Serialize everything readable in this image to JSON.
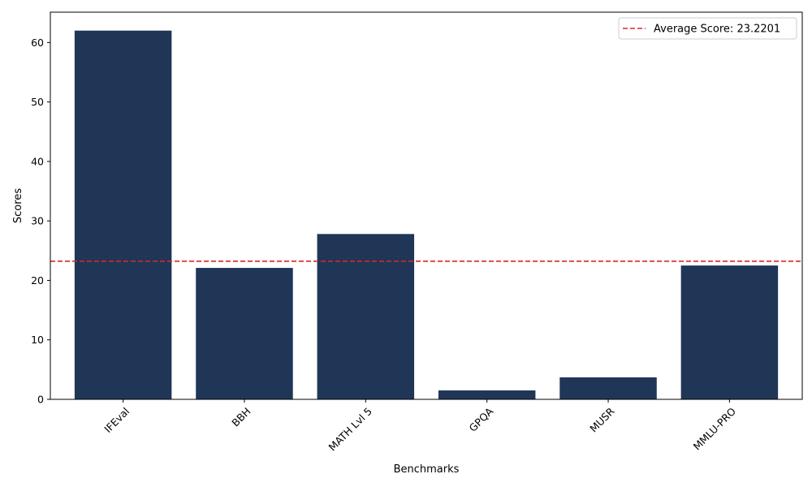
{
  "chart_data": {
    "type": "bar",
    "categories": [
      "IFEval",
      "BBH",
      "MATH Lvl 5",
      "GPQA",
      "MUSR",
      "MMLU-PRO"
    ],
    "values": [
      62.0,
      22.1,
      27.8,
      1.5,
      3.7,
      22.5
    ],
    "xlabel": "Benchmarks",
    "ylabel": "Scores",
    "ylim": [
      0,
      65.1
    ],
    "yticks": [
      0,
      10,
      20,
      30,
      40,
      50,
      60
    ],
    "bar_color": "#1f3657",
    "average": {
      "value": 23.2201,
      "label": "Average Score: 23.2201",
      "color": "#d62728",
      "style": "dashed"
    },
    "legend": "top-right",
    "grid": false
  }
}
